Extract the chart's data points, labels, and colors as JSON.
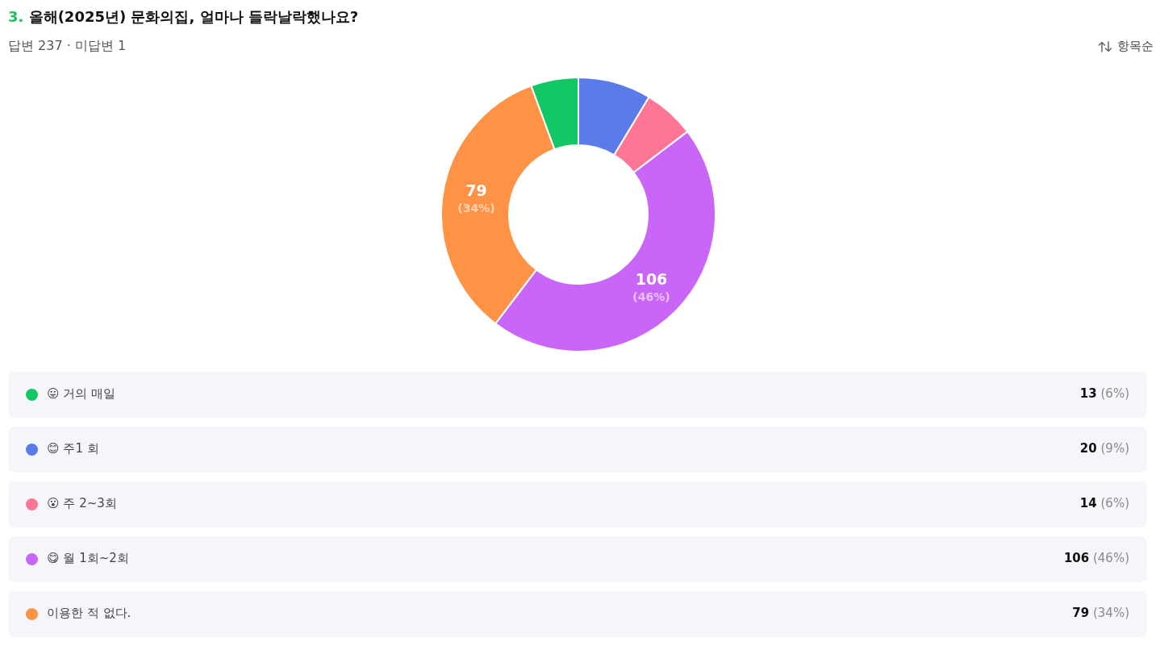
{
  "chart_data": {
    "type": "donut",
    "title": "3. 올해(2025년) 문화의집, 얼마나 들락날락했나요?",
    "subtitle": "답변 237 · 미답변 1",
    "annotations": [
      "항목순"
    ],
    "categories": [
      "😛 거의 매일",
      "😊 주1 회",
      "😮 주 2~3회",
      "😋 월 1회~2회",
      "이용한 적 없다."
    ],
    "values": [
      13,
      20,
      14,
      106,
      79
    ],
    "colors": [
      "#12c864",
      "#5a7be8",
      "#ff7596",
      "#c966f8",
      "#ff9345"
    ],
    "value_labels": [
      "13 (6%)",
      "20 (9%)",
      "14 (6%)",
      "106 (46%)",
      "79 (34%)"
    ],
    "legend": "bottom"
  }
}
